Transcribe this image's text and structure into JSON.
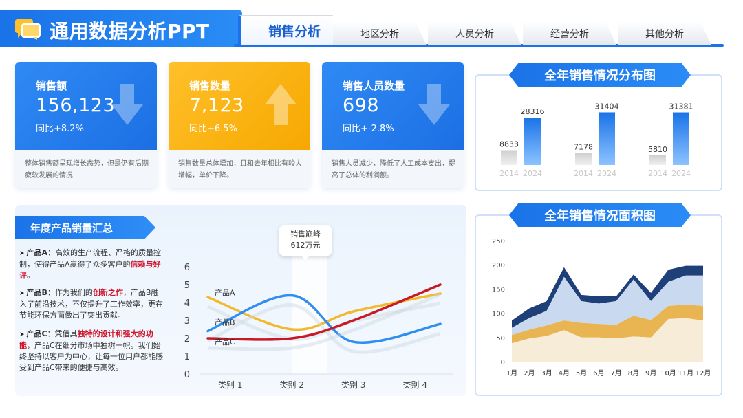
{
  "header": {
    "title": "通用数据分析PPT",
    "logo_icon": "chat-bubbles-icon",
    "tabs": [
      {
        "label": "销售分析",
        "active": true
      },
      {
        "label": "地区分析",
        "active": false
      },
      {
        "label": "人员分析",
        "active": false
      },
      {
        "label": "经营分析",
        "active": false
      },
      {
        "label": "其他分析",
        "active": false
      }
    ]
  },
  "kpis": [
    {
      "label": "销售额",
      "value": "156,123",
      "sub": "同比+8.2%",
      "icon": "down-arrow-icon",
      "color": "#2f8af5",
      "desc": "整体销售额呈现增长态势，但是仍有后期疲软发展的情况"
    },
    {
      "label": "销售数量",
      "value": "7,123",
      "sub": "同比+6.5%",
      "icon": "up-arrow-icon",
      "color": "#ffb617",
      "desc": "销售数量总体增加，且和去年相比有较大增幅，单价下降。"
    },
    {
      "label": "销售人员数量",
      "value": "698",
      "sub": "同比+-2.8%",
      "icon": "down-arrow-icon",
      "color": "#2f8af5",
      "desc": "销售人员减少，降低了人工成本支出，提高了总体的利润额。"
    }
  ],
  "distribution": {
    "title": "全年销售情况分布图",
    "chart_data": {
      "type": "bar",
      "groups": [
        {
          "values": [
            8833,
            28316
          ],
          "categories": [
            "2014",
            "2024"
          ]
        },
        {
          "values": [
            7178,
            31404
          ],
          "categories": [
            "2014",
            "2024"
          ]
        },
        {
          "values": [
            5810,
            31381
          ],
          "categories": [
            "2014",
            "2024"
          ]
        }
      ],
      "ylim": [
        0,
        35000
      ]
    }
  },
  "area": {
    "title": "全年销售情况面积图",
    "chart_data": {
      "type": "area",
      "categories": [
        "1月",
        "2月",
        "3月",
        "4月",
        "5月",
        "6月",
        "7月",
        "8月",
        "9月",
        "10月",
        "11月",
        "12月"
      ],
      "yticks": [
        0,
        50,
        100,
        150,
        200,
        250
      ],
      "ylim": [
        0,
        250
      ],
      "series": [
        {
          "values": [
            38,
            48,
            53,
            65,
            50,
            50,
            48,
            52,
            50,
            88,
            90,
            85
          ],
          "color": "#f7ecd8"
        },
        {
          "values": [
            55,
            66,
            75,
            85,
            80,
            78,
            76,
            95,
            86,
            115,
            118,
            115
          ],
          "color": "#e8b552"
        },
        {
          "values": [
            70,
            90,
            105,
            175,
            125,
            120,
            125,
            170,
            125,
            165,
            178,
            178
          ],
          "color": "#c9daf0"
        },
        {
          "values": [
            85,
            110,
            125,
            195,
            138,
            135,
            135,
            180,
            142,
            190,
            198,
            198
          ],
          "color": "#1f3f78"
        }
      ]
    }
  },
  "summary": {
    "title": "年度产品销量汇总",
    "products": [
      {
        "name": "产品A",
        "t1": "：高效的生产流程、严格的质量控制，使得产品A赢得了众多客户的",
        "em": "信赖与好评",
        "t2": "。"
      },
      {
        "name": "产品B",
        "t1": "：作为我们的",
        "em": "创新之作",
        "t2": "，产品B融入了前沿技术，不仅提升了工作效率，更在节能环保方面做出了突出贡献。"
      },
      {
        "name": "产品C",
        "t1": "：凭借其",
        "em": "独特的设计和强大的功能",
        "t2": "，产品C在细分市场中独树一帜。我们始终坚持以客户为中心，让每一位用户都能感受到产品C带来的便捷与高效。"
      }
    ],
    "highlight": {
      "line1": "销售巅峰",
      "line2": "612万元"
    },
    "chart_data": {
      "type": "line",
      "categories": [
        "类别 1",
        "类别 2",
        "类别 3",
        "类别 4"
      ],
      "yticks": [
        0,
        1,
        2,
        3,
        4,
        5,
        6
      ],
      "ylim": [
        0,
        6
      ],
      "series": [
        {
          "name": "产品A",
          "values": [
            4.3,
            2.5,
            3.5,
            4.5
          ],
          "color": "#f2b92a"
        },
        {
          "name": "产品B",
          "values": [
            2.4,
            4.4,
            1.8,
            2.8
          ],
          "color": "#2f8ef0"
        },
        {
          "name": "产品C",
          "values": [
            2.0,
            2.0,
            3.0,
            5.0
          ],
          "color": "#c81a24"
        }
      ]
    }
  }
}
